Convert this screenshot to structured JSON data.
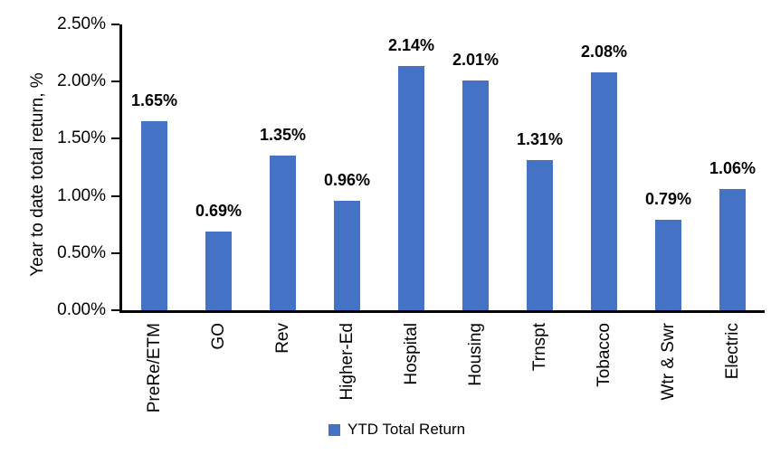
{
  "chart_data": {
    "type": "bar",
    "title": "",
    "xlabel": "",
    "ylabel": "Year to date total return, %",
    "categories": [
      "PreRe/ETM",
      "GO",
      "Rev",
      "Higher-Ed",
      "Hospital",
      "Housing",
      "Trnspt",
      "Tobacco",
      "Wtr & Swr",
      "Electric"
    ],
    "series": [
      {
        "name": "YTD Total Return",
        "values": [
          1.65,
          0.69,
          1.35,
          0.96,
          2.14,
          2.01,
          1.31,
          2.08,
          0.79,
          1.06
        ]
      }
    ],
    "value_labels": [
      "1.65%",
      "0.69%",
      "1.35%",
      "0.96%",
      "2.14%",
      "2.01%",
      "1.31%",
      "2.08%",
      "0.79%",
      "1.06%"
    ],
    "ylim": [
      0,
      2.5
    ],
    "yticks": [
      0,
      0.5,
      1.0,
      1.5,
      2.0,
      2.5
    ],
    "ytick_labels": [
      "0.00%",
      "0.50%",
      "1.00%",
      "1.50%",
      "2.00%",
      "2.50%"
    ],
    "grid": false,
    "legend": {
      "position": "bottom-center",
      "entries": [
        {
          "label": "YTD Total Return",
          "color": "#4472C4"
        }
      ]
    },
    "colors": {
      "bar": "#4472C4",
      "axis": "#000000",
      "text": "#000000",
      "background": "#FFFFFF"
    }
  }
}
